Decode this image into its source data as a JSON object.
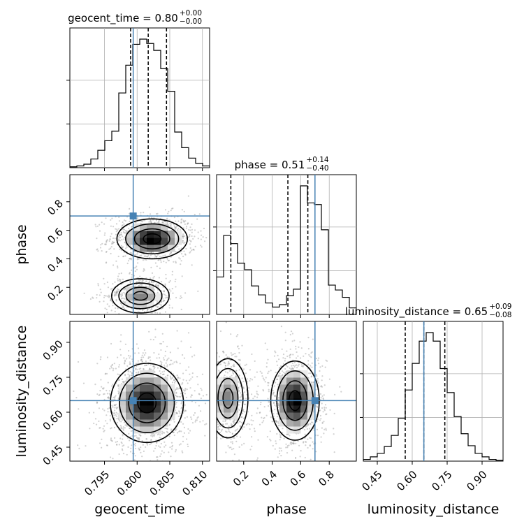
{
  "chart_data": {
    "type": "corner",
    "truth_color": "#4682b4",
    "params": [
      "geocent_time",
      "phase",
      "luminosity_distance"
    ],
    "truths": [
      0.7994,
      0.7,
      0.65
    ],
    "titles": [
      {
        "main": "geocent_time = 0.80",
        "upper": "+0.00",
        "lower": "−0.00"
      },
      {
        "main": "phase = 0.51",
        "upper": "+0.14",
        "lower": "−0.40"
      },
      {
        "main": "luminosity_distance = 0.65",
        "upper": "+0.09",
        "lower": "−0.08"
      }
    ],
    "axis_labels": {
      "x": [
        "geocent_time",
        "phase",
        "luminosity_distance"
      ],
      "y": [
        "phase",
        "luminosity_distance"
      ]
    },
    "ranges": [
      [
        0.7897,
        0.8111
      ],
      [
        0.01,
        0.99
      ],
      [
        0.39,
        0.99
      ]
    ],
    "ticks": {
      "geocent_time": [
        "0.795",
        "0.800",
        "0.805",
        "0.810"
      ],
      "phase": [
        "0.2",
        "0.4",
        "0.6",
        "0.8"
      ],
      "luminosity_distance": [
        "0.45",
        "0.60",
        "0.75",
        "0.90"
      ]
    },
    "quantiles": [
      [
        0.799,
        0.8017,
        0.8045
      ],
      [
        0.11,
        0.51,
        0.65
      ],
      [
        0.57,
        0.65,
        0.74
      ]
    ],
    "histograms": [
      {
        "param": "geocent_time",
        "edges_start": 0.7897,
        "edges_end": 0.8111,
        "counts": [
          1,
          2,
          4,
          10,
          20,
          31,
          42,
          86,
          118,
          142,
          148,
          143,
          135,
          114,
          88,
          41,
          23,
          11,
          5,
          2
        ]
      },
      {
        "param": "phase",
        "edges_start": 0.01,
        "edges_end": 0.99,
        "counts": [
          46,
          97,
          87,
          63,
          55,
          35,
          24,
          14,
          9,
          12,
          23,
          31,
          158,
          137,
          135,
          104,
          36,
          30,
          21,
          8
        ]
      },
      {
        "param": "luminosity_distance",
        "edges_start": 0.39,
        "edges_end": 0.99,
        "counts": [
          2,
          5,
          9,
          17,
          30,
          50,
          83,
          114,
          140,
          150,
          140,
          108,
          80,
          52,
          32,
          18,
          9,
          5,
          2,
          1
        ]
      }
    ],
    "pairs": [
      {
        "x": "geocent_time",
        "y": "phase",
        "modes": [
          {
            "x": 0.8023,
            "y": 0.54,
            "sx": 0.0027,
            "sy": 0.07,
            "w": 0.62
          },
          {
            "x": 0.8005,
            "y": 0.14,
            "sx": 0.0022,
            "sy": 0.06,
            "w": 0.38
          }
        ]
      },
      {
        "x": "geocent_time",
        "y": "luminosity_distance",
        "modes": [
          {
            "x": 0.8015,
            "y": 0.64,
            "sx": 0.0028,
            "sy": 0.085,
            "w": 1.0
          }
        ]
      },
      {
        "x": "phase",
        "y": "luminosity_distance",
        "modes": [
          {
            "x": 0.56,
            "y": 0.65,
            "sx": 0.085,
            "sy": 0.085,
            "w": 0.62
          },
          {
            "x": 0.09,
            "y": 0.66,
            "sx": 0.07,
            "sy": 0.085,
            "w": 0.38
          }
        ]
      }
    ],
    "grid": true,
    "legend": "none"
  }
}
